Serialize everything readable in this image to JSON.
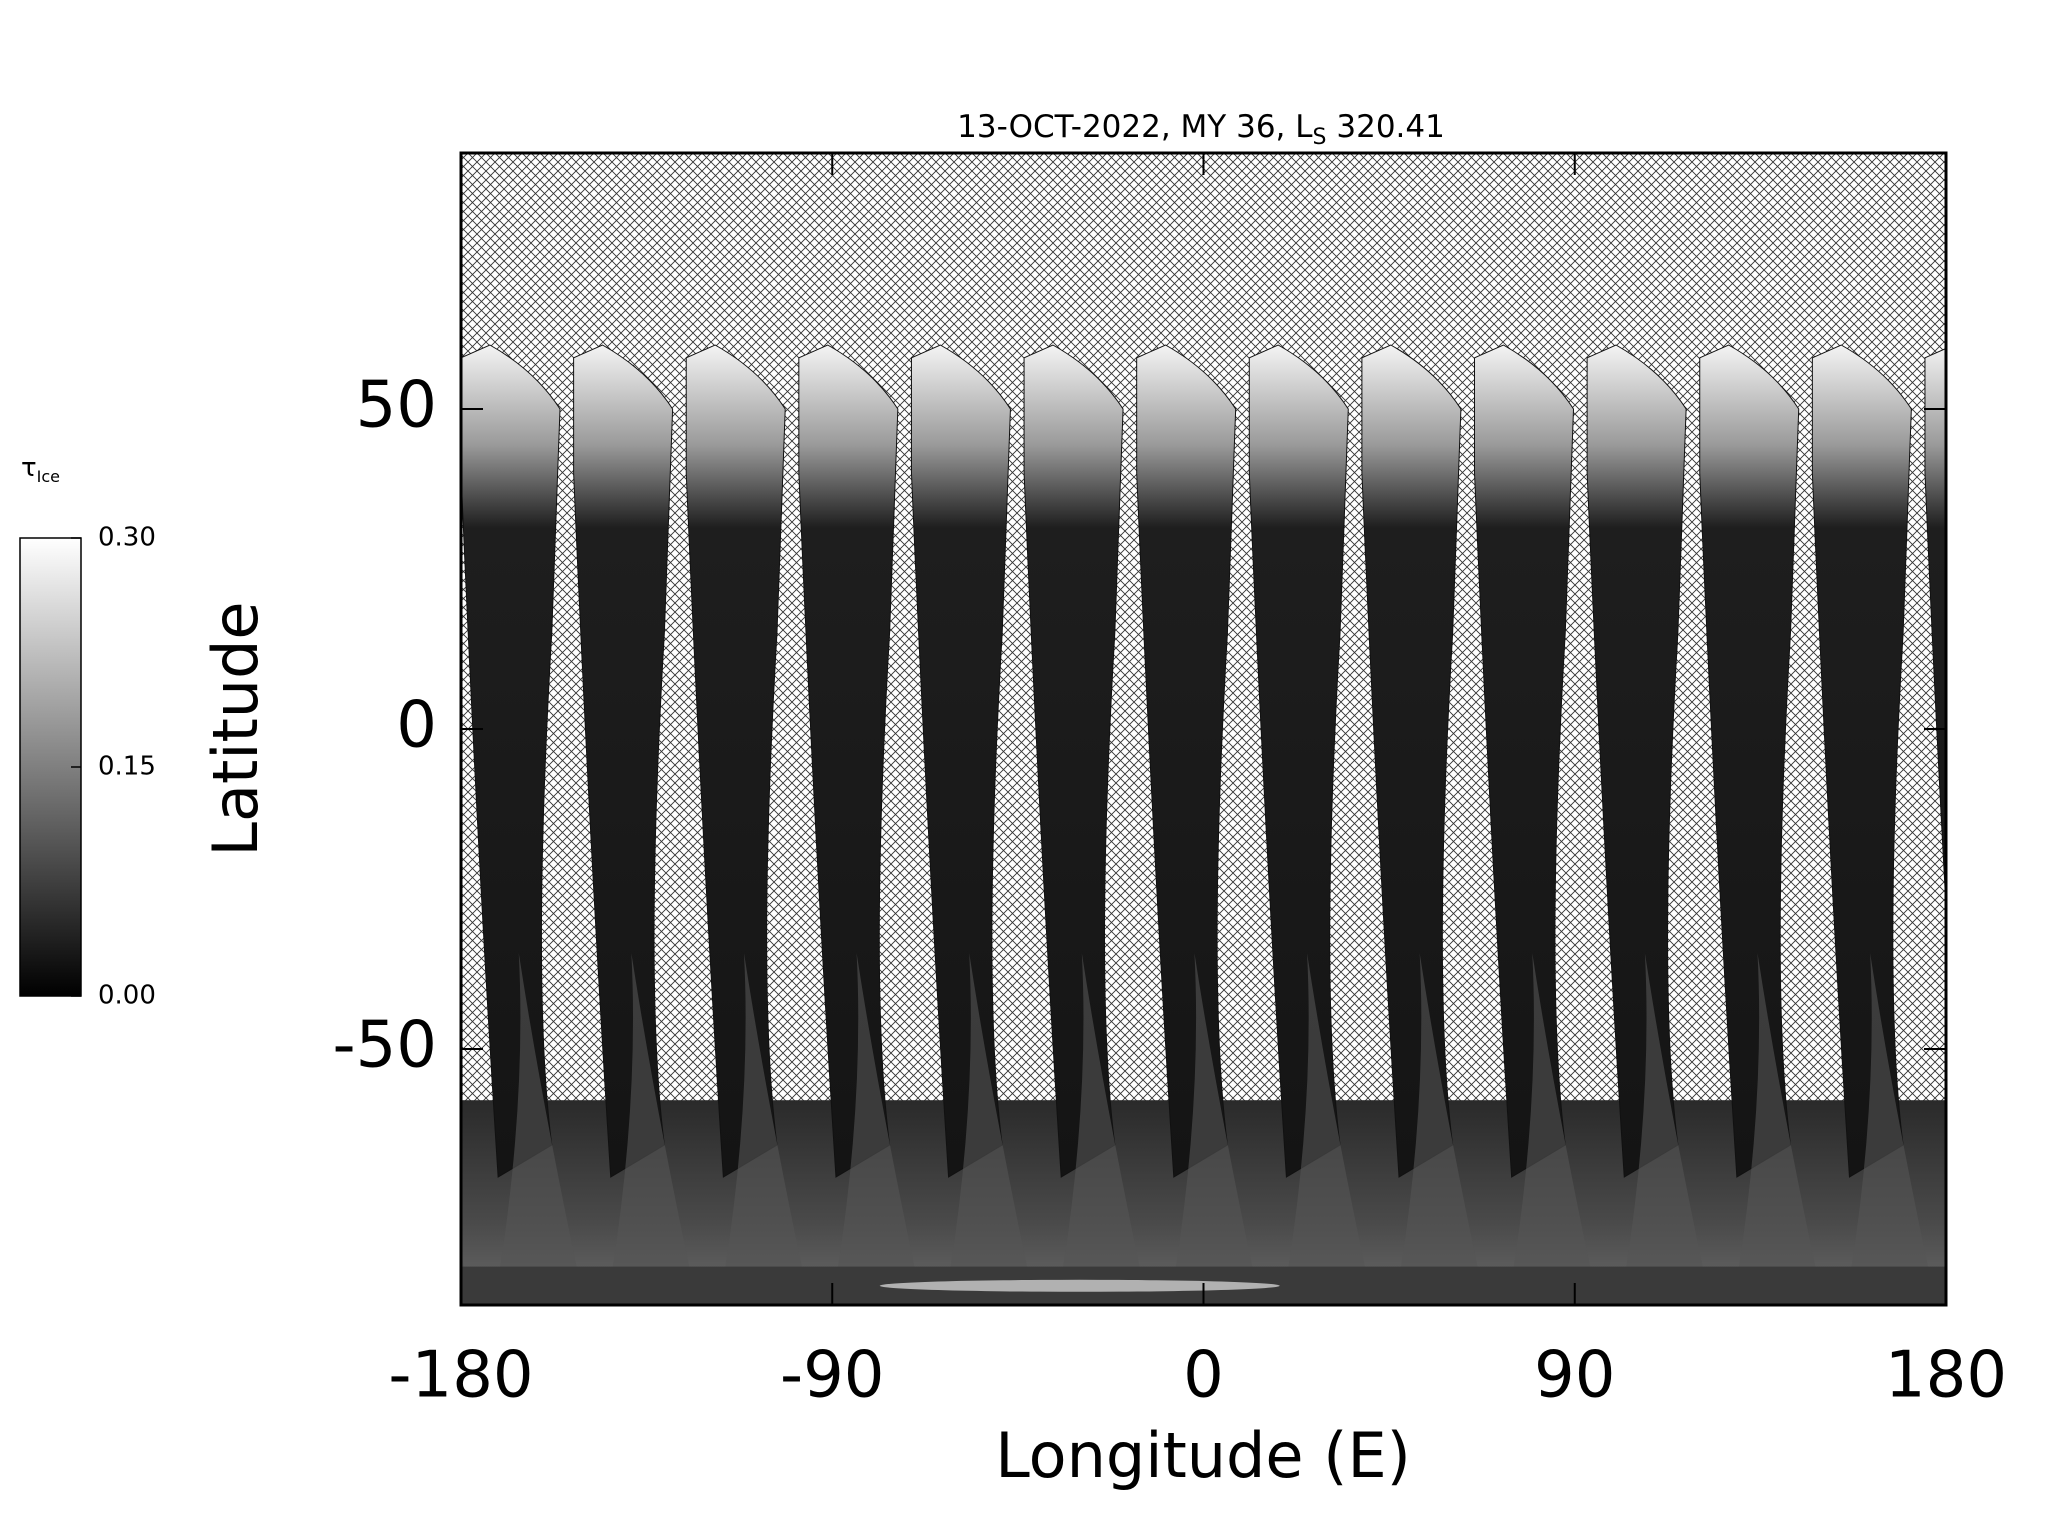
{
  "chart_data": {
    "type": "image",
    "title": {
      "main": "13-OCT-2022, MY 36,",
      "symbol": "L",
      "subscript": "S",
      "value": "320.41"
    },
    "x_label": "Longitude (E)",
    "y_label": "Latitude",
    "xlim": [
      -180,
      180
    ],
    "xticks": [
      -180,
      -90,
      0,
      90,
      180
    ],
    "ylim": [
      -90,
      90
    ],
    "yticks": [
      -50,
      0,
      50
    ],
    "colorbar": {
      "label": {
        "symbol": "τ",
        "subscript": "Ice"
      },
      "clim": [
        0,
        0.3
      ],
      "colors": [
        "#000000",
        "#ffffff"
      ],
      "ticks": [
        {
          "value": 0,
          "label": "0.00"
        },
        {
          "value": 0.15,
          "label": "0.15"
        },
        {
          "value": 0.3,
          "label": "0.30"
        }
      ]
    }
  }
}
